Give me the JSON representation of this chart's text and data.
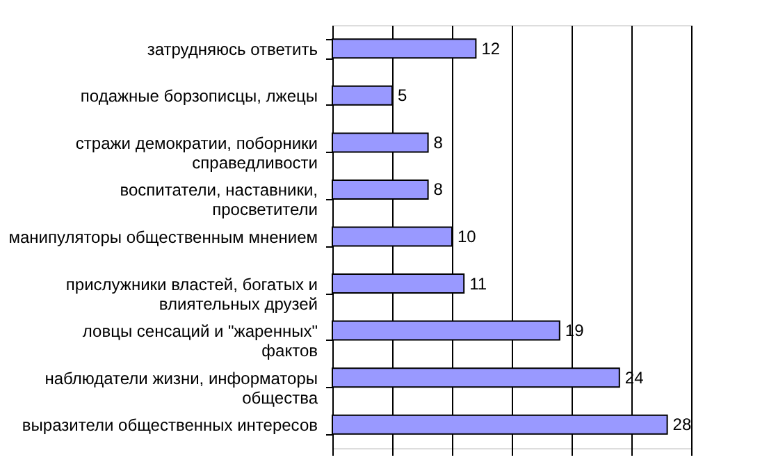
{
  "chart_data": {
    "type": "bar",
    "orientation": "horizontal",
    "categories": [
      "затрудняюсь ответить",
      "подажные борзописцы, лжецы",
      "стражи демократии, поборники справедливости",
      "воспитатели, наставники, просветители",
      "манипуляторы общественным мнением",
      "прислужники властей, богатых и влиятельных друзей",
      "ловцы сенсаций и \"жаренных\" фактов",
      "наблюдатели жизни, информаторы общества",
      "выразители общественных интересов"
    ],
    "values": [
      12,
      5,
      8,
      8,
      10,
      11,
      19,
      24,
      28
    ],
    "color": "#9999ff",
    "data_labels": true,
    "xlim": [
      0,
      30
    ],
    "xticks": [
      {
        "value": 0,
        "label": null
      },
      {
        "value": 5,
        "label": null
      },
      {
        "value": 10,
        "label": null
      },
      {
        "value": 15,
        "label": null
      },
      {
        "value": 20,
        "label": null
      },
      {
        "value": 25,
        "label": null
      },
      {
        "value": 30,
        "label": null
      }
    ],
    "grid": "x"
  }
}
